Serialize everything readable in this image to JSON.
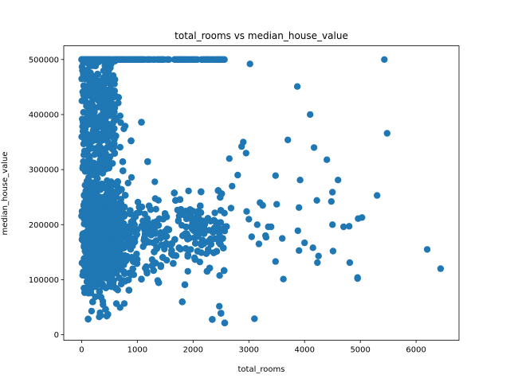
{
  "chart_data": {
    "type": "scatter",
    "title": "total_rooms vs median_house_value",
    "xlabel": "total_rooms",
    "ylabel": "median_house_value",
    "xlim": [
      -320,
      6770
    ],
    "ylim": [
      -10000,
      525000
    ],
    "x_ticks": [
      0,
      1000,
      2000,
      3000,
      4000,
      5000,
      6000
    ],
    "y_ticks": [
      0,
      100000,
      200000,
      300000,
      400000,
      500000
    ],
    "x_tick_labels": [
      "0",
      "1000",
      "2000",
      "3000",
      "4000",
      "5000",
      "6000"
    ],
    "y_tick_labels": [
      "0",
      "100000",
      "200000",
      "300000",
      "400000",
      "500000"
    ],
    "grid": false,
    "legend": "none",
    "color": "#1f77b4",
    "dense_region": {
      "x_range": [
        0,
        2700
      ],
      "y_range": [
        15000,
        500001
      ],
      "note": "approx. 6000 points concentrated at low total_rooms; rendered procedurally"
    },
    "series": [
      {
        "x": [
          5430,
          3020,
          3870,
          4100,
          5480,
          4170,
          4400,
          3700,
          2870,
          4600,
          3480,
          4500,
          3920,
          5300,
          3500,
          4220,
          4480,
          3900,
          4500,
          4700,
          4960,
          5030,
          4800,
          3400,
          3880,
          4810,
          4000,
          3900,
          4250,
          3310,
          4230,
          4510,
          4150,
          3350,
          3480,
          3620,
          4950,
          4950,
          3100,
          6200,
          6440,
          2950,
          2650,
          3300,
          2700,
          2900,
          2800,
          3200,
          2960,
          3600,
          3180,
          2680,
          3000,
          3050,
          3150,
          3250
        ],
        "y": [
          500001,
          492000,
          451000,
          400000,
          366000,
          340000,
          318000,
          354000,
          342000,
          281000,
          289000,
          259000,
          281000,
          253000,
          237000,
          244000,
          242000,
          231000,
          200000,
          196000,
          211000,
          213000,
          197000,
          196000,
          189000,
          131000,
          167000,
          153000,
          143000,
          177000,
          131000,
          152000,
          158000,
          196000,
          133000,
          101000,
          104000,
          102000,
          29000,
          155000,
          120000,
          330000,
          320000,
          180000,
          270000,
          350000,
          290000,
          240000,
          224000,
          175000,
          165000,
          230000,
          210000,
          178000,
          200000,
          235000
        ]
      }
    ]
  }
}
